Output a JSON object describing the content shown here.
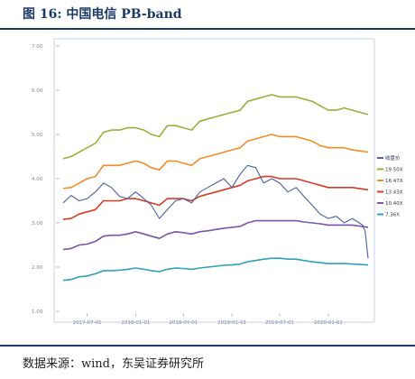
{
  "figure": {
    "title": "图 16:  中国电信 PB-band",
    "source": "数据来源：wind，东吴证券研究所"
  },
  "chart_data": {
    "type": "line",
    "title": "",
    "xlabel": "",
    "ylabel": "",
    "x_ticks": [
      "2017-07-01",
      "2018-01-01",
      "2018-07-01",
      "2019-01-01",
      "2019-07-01",
      "2020-01-01"
    ],
    "x_range": [
      "2017-04-01",
      "2020-05-31"
    ],
    "y_ticks": [
      "1.00",
      "2.00",
      "3.00",
      "4.00",
      "5.00",
      "6.00",
      "7.00"
    ],
    "ylim": [
      1,
      7
    ],
    "grid": false,
    "legend_position": "right",
    "series": [
      {
        "name": "收盘价",
        "color": "#4a5f9e",
        "points": [
          [
            "2017-04-01",
            3.45
          ],
          [
            "2017-05-01",
            3.62
          ],
          [
            "2017-06-01",
            3.5
          ],
          [
            "2017-07-01",
            3.55
          ],
          [
            "2017-08-01",
            3.7
          ],
          [
            "2017-09-01",
            3.9
          ],
          [
            "2017-10-01",
            3.8
          ],
          [
            "2017-11-01",
            3.6
          ],
          [
            "2017-12-01",
            3.55
          ],
          [
            "2018-01-01",
            3.7
          ],
          [
            "2018-02-01",
            3.55
          ],
          [
            "2018-03-01",
            3.4
          ],
          [
            "2018-04-01",
            3.1
          ],
          [
            "2018-05-01",
            3.3
          ],
          [
            "2018-06-01",
            3.5
          ],
          [
            "2018-07-01",
            3.55
          ],
          [
            "2018-08-01",
            3.45
          ],
          [
            "2018-09-01",
            3.7
          ],
          [
            "2018-10-01",
            3.8
          ],
          [
            "2018-11-01",
            3.9
          ],
          [
            "2018-12-01",
            4.0
          ],
          [
            "2019-01-01",
            3.8
          ],
          [
            "2019-02-01",
            4.1
          ],
          [
            "2019-03-01",
            4.3
          ],
          [
            "2019-04-01",
            4.25
          ],
          [
            "2019-05-01",
            3.9
          ],
          [
            "2019-06-01",
            4.0
          ],
          [
            "2019-07-01",
            3.9
          ],
          [
            "2019-08-01",
            3.7
          ],
          [
            "2019-09-01",
            3.8
          ],
          [
            "2019-10-01",
            3.6
          ],
          [
            "2019-11-01",
            3.4
          ],
          [
            "2019-12-01",
            3.2
          ],
          [
            "2020-01-01",
            3.1
          ],
          [
            "2020-02-01",
            3.15
          ],
          [
            "2020-03-01",
            3.0
          ],
          [
            "2020-04-01",
            3.1
          ],
          [
            "2020-05-10",
            2.95
          ],
          [
            "2020-05-20",
            2.8
          ],
          [
            "2020-05-31",
            2.2
          ]
        ]
      },
      {
        "name": "19.50X",
        "color": "#92b43a",
        "points": [
          [
            "2017-04-01",
            4.45
          ],
          [
            "2017-05-01",
            4.5
          ],
          [
            "2017-06-01",
            4.6
          ],
          [
            "2017-07-01",
            4.7
          ],
          [
            "2017-08-01",
            4.8
          ],
          [
            "2017-09-01",
            5.05
          ],
          [
            "2017-10-01",
            5.1
          ],
          [
            "2017-11-01",
            5.1
          ],
          [
            "2017-12-01",
            5.15
          ],
          [
            "2018-01-01",
            5.15
          ],
          [
            "2018-02-01",
            5.1
          ],
          [
            "2018-03-01",
            5.0
          ],
          [
            "2018-04-01",
            4.95
          ],
          [
            "2018-05-01",
            5.2
          ],
          [
            "2018-06-01",
            5.2
          ],
          [
            "2018-07-01",
            5.15
          ],
          [
            "2018-08-01",
            5.1
          ],
          [
            "2018-09-01",
            5.3
          ],
          [
            "2018-10-01",
            5.35
          ],
          [
            "2018-11-01",
            5.4
          ],
          [
            "2018-12-01",
            5.45
          ],
          [
            "2019-01-01",
            5.5
          ],
          [
            "2019-02-01",
            5.55
          ],
          [
            "2019-03-01",
            5.75
          ],
          [
            "2019-04-01",
            5.8
          ],
          [
            "2019-05-01",
            5.85
          ],
          [
            "2019-06-01",
            5.9
          ],
          [
            "2019-07-01",
            5.85
          ],
          [
            "2019-08-01",
            5.85
          ],
          [
            "2019-09-01",
            5.85
          ],
          [
            "2019-10-01",
            5.8
          ],
          [
            "2019-11-01",
            5.75
          ],
          [
            "2019-12-01",
            5.65
          ],
          [
            "2020-01-01",
            5.55
          ],
          [
            "2020-02-01",
            5.55
          ],
          [
            "2020-03-01",
            5.6
          ],
          [
            "2020-04-01",
            5.55
          ],
          [
            "2020-05-31",
            5.45
          ]
        ]
      },
      {
        "name": "16.47X",
        "color": "#f28c28",
        "points": [
          [
            "2017-04-01",
            3.78
          ],
          [
            "2017-05-01",
            3.8
          ],
          [
            "2017-06-01",
            3.9
          ],
          [
            "2017-07-01",
            4.0
          ],
          [
            "2017-08-01",
            4.05
          ],
          [
            "2017-09-01",
            4.3
          ],
          [
            "2017-10-01",
            4.3
          ],
          [
            "2017-11-01",
            4.3
          ],
          [
            "2017-12-01",
            4.35
          ],
          [
            "2018-01-01",
            4.4
          ],
          [
            "2018-02-01",
            4.35
          ],
          [
            "2018-03-01",
            4.25
          ],
          [
            "2018-04-01",
            4.2
          ],
          [
            "2018-05-01",
            4.4
          ],
          [
            "2018-06-01",
            4.4
          ],
          [
            "2018-07-01",
            4.35
          ],
          [
            "2018-08-01",
            4.3
          ],
          [
            "2018-09-01",
            4.45
          ],
          [
            "2018-10-01",
            4.5
          ],
          [
            "2018-11-01",
            4.55
          ],
          [
            "2018-12-01",
            4.6
          ],
          [
            "2019-01-01",
            4.65
          ],
          [
            "2019-02-01",
            4.7
          ],
          [
            "2019-03-01",
            4.85
          ],
          [
            "2019-04-01",
            4.9
          ],
          [
            "2019-05-01",
            4.95
          ],
          [
            "2019-06-01",
            5.0
          ],
          [
            "2019-07-01",
            4.95
          ],
          [
            "2019-08-01",
            4.95
          ],
          [
            "2019-09-01",
            4.95
          ],
          [
            "2019-10-01",
            4.9
          ],
          [
            "2019-11-01",
            4.85
          ],
          [
            "2019-12-01",
            4.75
          ],
          [
            "2020-01-01",
            4.7
          ],
          [
            "2020-02-01",
            4.7
          ],
          [
            "2020-03-01",
            4.7
          ],
          [
            "2020-04-01",
            4.65
          ],
          [
            "2020-05-31",
            4.6
          ]
        ]
      },
      {
        "name": "13.43X",
        "color": "#d63b24",
        "points": [
          [
            "2017-04-01",
            3.08
          ],
          [
            "2017-05-01",
            3.1
          ],
          [
            "2017-06-01",
            3.2
          ],
          [
            "2017-07-01",
            3.25
          ],
          [
            "2017-08-01",
            3.3
          ],
          [
            "2017-09-01",
            3.5
          ],
          [
            "2017-10-01",
            3.5
          ],
          [
            "2017-11-01",
            3.5
          ],
          [
            "2017-12-01",
            3.55
          ],
          [
            "2018-01-01",
            3.55
          ],
          [
            "2018-02-01",
            3.5
          ],
          [
            "2018-03-01",
            3.45
          ],
          [
            "2018-04-01",
            3.4
          ],
          [
            "2018-05-01",
            3.55
          ],
          [
            "2018-06-01",
            3.55
          ],
          [
            "2018-07-01",
            3.55
          ],
          [
            "2018-08-01",
            3.5
          ],
          [
            "2018-09-01",
            3.6
          ],
          [
            "2018-10-01",
            3.65
          ],
          [
            "2018-11-01",
            3.7
          ],
          [
            "2018-12-01",
            3.75
          ],
          [
            "2019-01-01",
            3.8
          ],
          [
            "2019-02-01",
            3.85
          ],
          [
            "2019-03-01",
            3.95
          ],
          [
            "2019-04-01",
            4.0
          ],
          [
            "2019-05-01",
            4.05
          ],
          [
            "2019-06-01",
            4.05
          ],
          [
            "2019-07-01",
            4.0
          ],
          [
            "2019-08-01",
            4.0
          ],
          [
            "2019-09-01",
            4.0
          ],
          [
            "2019-10-01",
            3.95
          ],
          [
            "2019-11-01",
            3.9
          ],
          [
            "2019-12-01",
            3.85
          ],
          [
            "2020-01-01",
            3.8
          ],
          [
            "2020-02-01",
            3.8
          ],
          [
            "2020-03-01",
            3.8
          ],
          [
            "2020-04-01",
            3.8
          ],
          [
            "2020-05-31",
            3.75
          ]
        ]
      },
      {
        "name": "10.40X",
        "color": "#7a55a8",
        "points": [
          [
            "2017-04-01",
            2.4
          ],
          [
            "2017-05-01",
            2.42
          ],
          [
            "2017-06-01",
            2.5
          ],
          [
            "2017-07-01",
            2.52
          ],
          [
            "2017-08-01",
            2.58
          ],
          [
            "2017-09-01",
            2.7
          ],
          [
            "2017-10-01",
            2.72
          ],
          [
            "2017-11-01",
            2.72
          ],
          [
            "2017-12-01",
            2.75
          ],
          [
            "2018-01-01",
            2.8
          ],
          [
            "2018-02-01",
            2.75
          ],
          [
            "2018-03-01",
            2.7
          ],
          [
            "2018-04-01",
            2.65
          ],
          [
            "2018-05-01",
            2.75
          ],
          [
            "2018-06-01",
            2.8
          ],
          [
            "2018-07-01",
            2.78
          ],
          [
            "2018-08-01",
            2.75
          ],
          [
            "2018-09-01",
            2.8
          ],
          [
            "2018-10-01",
            2.82
          ],
          [
            "2018-11-01",
            2.85
          ],
          [
            "2018-12-01",
            2.88
          ],
          [
            "2019-01-01",
            2.9
          ],
          [
            "2019-02-01",
            2.92
          ],
          [
            "2019-03-01",
            3.0
          ],
          [
            "2019-04-01",
            3.05
          ],
          [
            "2019-05-01",
            3.05
          ],
          [
            "2019-06-01",
            3.05
          ],
          [
            "2019-07-01",
            3.05
          ],
          [
            "2019-08-01",
            3.05
          ],
          [
            "2019-09-01",
            3.05
          ],
          [
            "2019-10-01",
            3.02
          ],
          [
            "2019-11-01",
            3.0
          ],
          [
            "2019-12-01",
            2.98
          ],
          [
            "2020-01-01",
            2.95
          ],
          [
            "2020-02-01",
            2.95
          ],
          [
            "2020-03-01",
            2.95
          ],
          [
            "2020-04-01",
            2.95
          ],
          [
            "2020-05-31",
            2.9
          ]
        ]
      },
      {
        "name": "7.36X",
        "color": "#2aa3b7",
        "points": [
          [
            "2017-04-01",
            1.7
          ],
          [
            "2017-05-01",
            1.72
          ],
          [
            "2017-06-01",
            1.78
          ],
          [
            "2017-07-01",
            1.8
          ],
          [
            "2017-08-01",
            1.85
          ],
          [
            "2017-09-01",
            1.92
          ],
          [
            "2017-10-01",
            1.92
          ],
          [
            "2017-11-01",
            1.93
          ],
          [
            "2017-12-01",
            1.95
          ],
          [
            "2018-01-01",
            1.98
          ],
          [
            "2018-02-01",
            1.95
          ],
          [
            "2018-03-01",
            1.92
          ],
          [
            "2018-04-01",
            1.9
          ],
          [
            "2018-05-01",
            1.95
          ],
          [
            "2018-06-01",
            1.98
          ],
          [
            "2018-07-01",
            1.97
          ],
          [
            "2018-08-01",
            1.95
          ],
          [
            "2018-09-01",
            1.98
          ],
          [
            "2018-10-01",
            2.0
          ],
          [
            "2018-11-01",
            2.02
          ],
          [
            "2018-12-01",
            2.04
          ],
          [
            "2019-01-01",
            2.05
          ],
          [
            "2019-02-01",
            2.07
          ],
          [
            "2019-03-01",
            2.12
          ],
          [
            "2019-04-01",
            2.15
          ],
          [
            "2019-05-01",
            2.18
          ],
          [
            "2019-06-01",
            2.2
          ],
          [
            "2019-07-01",
            2.2
          ],
          [
            "2019-08-01",
            2.18
          ],
          [
            "2019-09-01",
            2.18
          ],
          [
            "2019-10-01",
            2.15
          ],
          [
            "2019-11-01",
            2.12
          ],
          [
            "2019-12-01",
            2.1
          ],
          [
            "2020-01-01",
            2.08
          ],
          [
            "2020-02-01",
            2.08
          ],
          [
            "2020-03-01",
            2.08
          ],
          [
            "2020-04-01",
            2.07
          ],
          [
            "2020-05-31",
            2.05
          ]
        ]
      }
    ]
  }
}
